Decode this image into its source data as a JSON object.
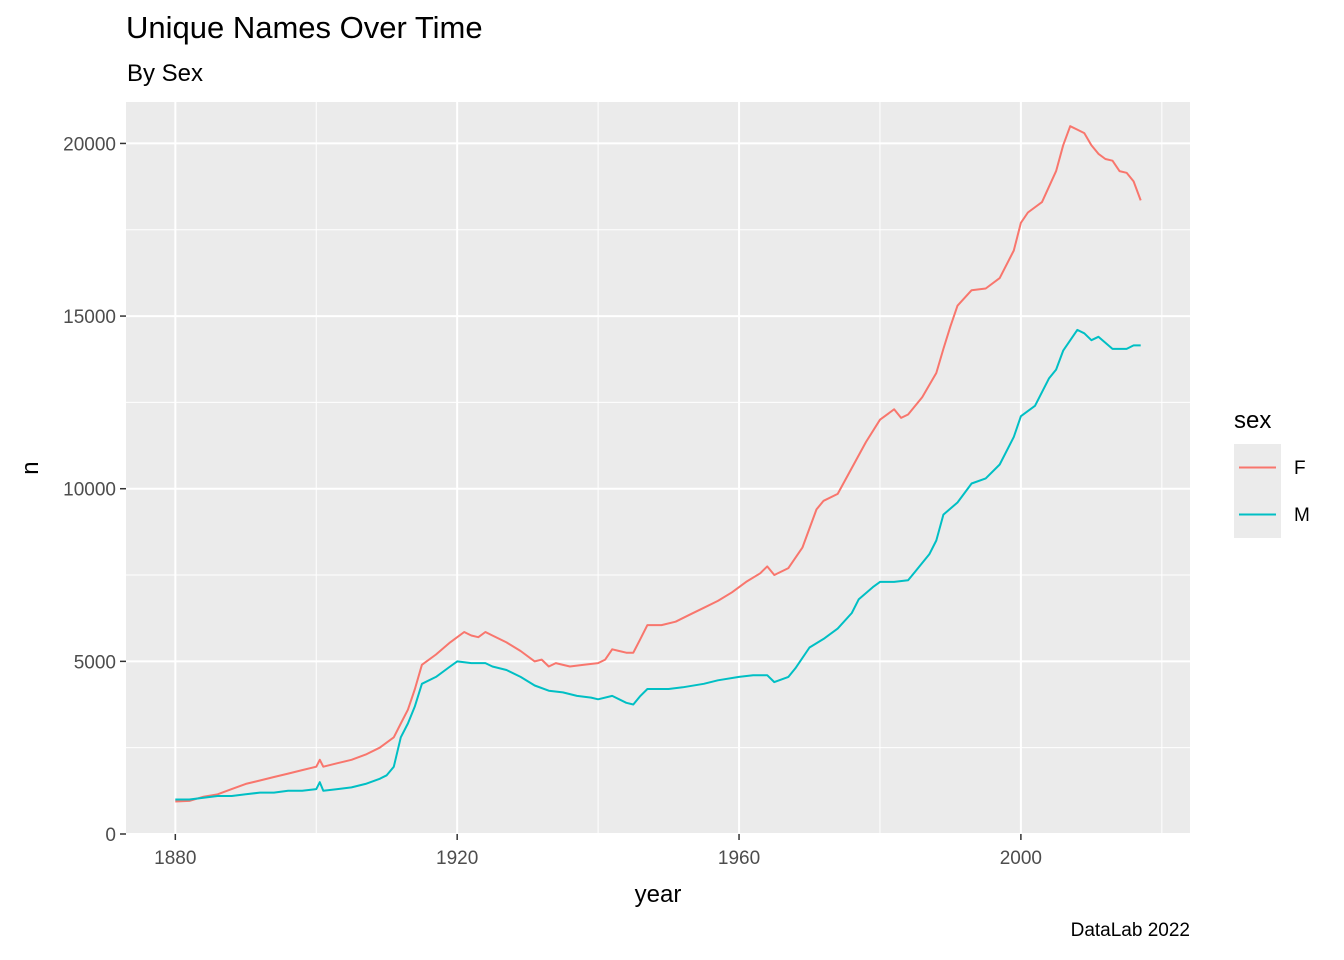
{
  "title": "Unique Names Over Time",
  "subtitle": "By Sex",
  "caption": "DataLab 2022",
  "colors": {
    "F": "#F8766D",
    "M": "#00BFC4",
    "panel": "#EBEBEB",
    "grid": "#FFFFFF"
  },
  "chart_data": {
    "type": "line",
    "title": "Unique Names Over Time",
    "subtitle": "By Sex",
    "xlabel": "year",
    "ylabel": "n",
    "xlim": [
      1873,
      2024
    ],
    "ylim": [
      0,
      21200
    ],
    "x_ticks": [
      1880,
      1920,
      1960,
      2000
    ],
    "x_tick_labels": [
      "1880",
      "1920",
      "1960",
      "2000"
    ],
    "y_ticks": [
      0,
      5000,
      10000,
      15000,
      20000
    ],
    "y_tick_labels": [
      "0",
      "5000",
      "10000",
      "15000",
      "20000"
    ],
    "grid": true,
    "legend": {
      "title": "sex",
      "placement": "right",
      "entries": [
        "F",
        "M"
      ]
    },
    "series": [
      {
        "name": "F",
        "color": "#F8766D",
        "points": [
          [
            1880,
            940
          ],
          [
            1882,
            960
          ],
          [
            1884,
            1080
          ],
          [
            1886,
            1150
          ],
          [
            1888,
            1300
          ],
          [
            1890,
            1450
          ],
          [
            1892,
            1550
          ],
          [
            1894,
            1650
          ],
          [
            1896,
            1750
          ],
          [
            1898,
            1850
          ],
          [
            1900,
            1950
          ],
          [
            1900.5,
            2150
          ],
          [
            1901,
            1950
          ],
          [
            1903,
            2050
          ],
          [
            1905,
            2150
          ],
          [
            1907,
            2300
          ],
          [
            1909,
            2500
          ],
          [
            1911,
            2800
          ],
          [
            1912,
            3200
          ],
          [
            1913,
            3600
          ],
          [
            1914,
            4200
          ],
          [
            1915,
            4900
          ],
          [
            1917,
            5200
          ],
          [
            1919,
            5550
          ],
          [
            1920,
            5700
          ],
          [
            1921,
            5850
          ],
          [
            1922,
            5750
          ],
          [
            1923,
            5700
          ],
          [
            1924,
            5850
          ],
          [
            1925,
            5750
          ],
          [
            1927,
            5550
          ],
          [
            1929,
            5300
          ],
          [
            1931,
            5000
          ],
          [
            1932,
            5050
          ],
          [
            1933,
            4850
          ],
          [
            1934,
            4950
          ],
          [
            1936,
            4850
          ],
          [
            1938,
            4900
          ],
          [
            1940,
            4950
          ],
          [
            1941,
            5050
          ],
          [
            1942,
            5350
          ],
          [
            1943,
            5300
          ],
          [
            1944,
            5250
          ],
          [
            1945,
            5250
          ],
          [
            1946,
            5650
          ],
          [
            1947,
            6050
          ],
          [
            1949,
            6050
          ],
          [
            1951,
            6150
          ],
          [
            1953,
            6350
          ],
          [
            1955,
            6550
          ],
          [
            1957,
            6750
          ],
          [
            1959,
            7000
          ],
          [
            1961,
            7300
          ],
          [
            1963,
            7550
          ],
          [
            1964,
            7750
          ],
          [
            1965,
            7500
          ],
          [
            1967,
            7700
          ],
          [
            1969,
            8300
          ],
          [
            1971,
            9400
          ],
          [
            1972,
            9650
          ],
          [
            1974,
            9850
          ],
          [
            1976,
            10600
          ],
          [
            1978,
            11350
          ],
          [
            1980,
            12000
          ],
          [
            1982,
            12300
          ],
          [
            1983,
            12050
          ],
          [
            1984,
            12150
          ],
          [
            1986,
            12650
          ],
          [
            1988,
            13350
          ],
          [
            1989,
            14050
          ],
          [
            1990,
            14700
          ],
          [
            1991,
            15300
          ],
          [
            1993,
            15750
          ],
          [
            1995,
            15800
          ],
          [
            1997,
            16100
          ],
          [
            1999,
            16900
          ],
          [
            2000,
            17700
          ],
          [
            2001,
            18000
          ],
          [
            2003,
            18300
          ],
          [
            2005,
            19200
          ],
          [
            2006,
            19950
          ],
          [
            2007,
            20500
          ],
          [
            2008,
            20400
          ],
          [
            2009,
            20300
          ],
          [
            2010,
            19950
          ],
          [
            2011,
            19700
          ],
          [
            2012,
            19550
          ],
          [
            2013,
            19500
          ],
          [
            2014,
            19200
          ],
          [
            2015,
            19150
          ],
          [
            2016,
            18900
          ],
          [
            2017,
            18350
          ]
        ]
      },
      {
        "name": "M",
        "color": "#00BFC4",
        "points": [
          [
            1880,
            1000
          ],
          [
            1882,
            1000
          ],
          [
            1884,
            1050
          ],
          [
            1886,
            1100
          ],
          [
            1888,
            1100
          ],
          [
            1890,
            1150
          ],
          [
            1892,
            1200
          ],
          [
            1894,
            1200
          ],
          [
            1896,
            1250
          ],
          [
            1898,
            1250
          ],
          [
            1900,
            1300
          ],
          [
            1900.5,
            1500
          ],
          [
            1901,
            1250
          ],
          [
            1903,
            1300
          ],
          [
            1905,
            1350
          ],
          [
            1907,
            1450
          ],
          [
            1909,
            1600
          ],
          [
            1910,
            1700
          ],
          [
            1911,
            1950
          ],
          [
            1912,
            2800
          ],
          [
            1913,
            3200
          ],
          [
            1914,
            3700
          ],
          [
            1915,
            4350
          ],
          [
            1917,
            4550
          ],
          [
            1919,
            4850
          ],
          [
            1920,
            5000
          ],
          [
            1922,
            4950
          ],
          [
            1924,
            4950
          ],
          [
            1925,
            4850
          ],
          [
            1927,
            4750
          ],
          [
            1929,
            4550
          ],
          [
            1931,
            4300
          ],
          [
            1933,
            4150
          ],
          [
            1935,
            4100
          ],
          [
            1937,
            4000
          ],
          [
            1939,
            3950
          ],
          [
            1940,
            3900
          ],
          [
            1942,
            4000
          ],
          [
            1944,
            3800
          ],
          [
            1945,
            3750
          ],
          [
            1946,
            4000
          ],
          [
            1947,
            4200
          ],
          [
            1950,
            4200
          ],
          [
            1952,
            4250
          ],
          [
            1955,
            4350
          ],
          [
            1957,
            4450
          ],
          [
            1960,
            4550
          ],
          [
            1962,
            4600
          ],
          [
            1964,
            4600
          ],
          [
            1965,
            4400
          ],
          [
            1967,
            4550
          ],
          [
            1968,
            4800
          ],
          [
            1970,
            5400
          ],
          [
            1972,
            5650
          ],
          [
            1974,
            5950
          ],
          [
            1976,
            6400
          ],
          [
            1977,
            6800
          ],
          [
            1979,
            7150
          ],
          [
            1980,
            7300
          ],
          [
            1982,
            7300
          ],
          [
            1984,
            7350
          ],
          [
            1985,
            7600
          ],
          [
            1987,
            8100
          ],
          [
            1988,
            8500
          ],
          [
            1989,
            9250
          ],
          [
            1991,
            9600
          ],
          [
            1993,
            10150
          ],
          [
            1995,
            10300
          ],
          [
            1997,
            10700
          ],
          [
            1999,
            11500
          ],
          [
            2000,
            12100
          ],
          [
            2002,
            12400
          ],
          [
            2004,
            13200
          ],
          [
            2005,
            13450
          ],
          [
            2006,
            14000
          ],
          [
            2008,
            14600
          ],
          [
            2009,
            14500
          ],
          [
            2010,
            14300
          ],
          [
            2011,
            14400
          ],
          [
            2013,
            14050
          ],
          [
            2015,
            14050
          ],
          [
            2016,
            14150
          ],
          [
            2017,
            14150
          ]
        ]
      }
    ]
  }
}
